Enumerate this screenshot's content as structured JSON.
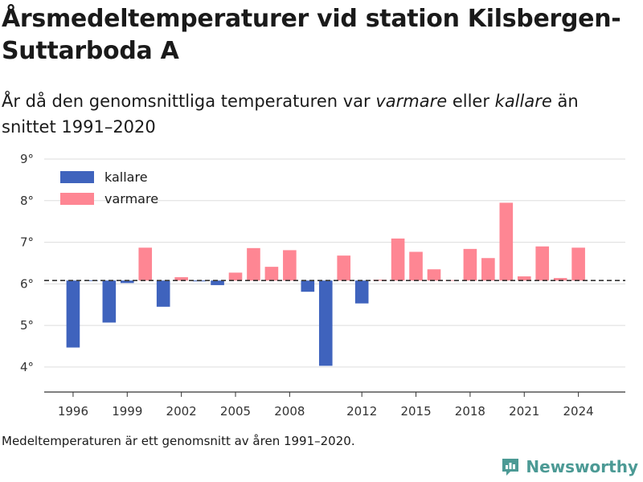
{
  "title": "Årsmedeltemperaturer vid station Kilsbergen-Suttarboda A",
  "subtitle": {
    "part1": "År då den genomsnittliga temperaturen var ",
    "warm_word": "varmare",
    "part2": " eller ",
    "cold_word": "kallare",
    "part3": " än snittet 1991–2020"
  },
  "footnote": "Medeltemperaturen är ett genomsnitt av åren 1991–2020.",
  "brand": {
    "name": "Newsworthy",
    "logo_icon": "newsworthy-logo-icon"
  },
  "colors": {
    "kallare": "#3f63bd",
    "varmare": "#fe8693",
    "baseline": "#333333",
    "grid": "#dddddd"
  },
  "chart_data": {
    "type": "bar",
    "baseline": 6.08,
    "xlim": [
      1994.4,
      2026.6
    ],
    "ylim": [
      3.4,
      9.0
    ],
    "x_ticks": [
      1996,
      1999,
      2002,
      2005,
      2008,
      2012,
      2015,
      2018,
      2021,
      2024
    ],
    "y_ticks": [
      4,
      5,
      6,
      7,
      8,
      9
    ],
    "y_tick_labels": [
      "4°",
      "5°",
      "6°",
      "7°",
      "8°",
      "9°"
    ],
    "legend": [
      {
        "key": "kallare",
        "label": "kallare"
      },
      {
        "key": "varmare",
        "label": "varmare"
      }
    ],
    "legend_position": "top-left",
    "grid": true,
    "years": [
      1996,
      1997,
      1998,
      1999,
      2000,
      2001,
      2002,
      2003,
      2004,
      2005,
      2006,
      2007,
      2008,
      2009,
      2010,
      2011,
      2012,
      2013,
      2014,
      2015,
      2016,
      2017,
      2018,
      2019,
      2020,
      2021,
      2022,
      2023,
      2024
    ],
    "values": [
      4.47,
      6.07,
      5.07,
      6.02,
      6.87,
      5.45,
      6.16,
      6.06,
      5.97,
      6.27,
      6.86,
      6.41,
      6.81,
      5.81,
      4.03,
      6.68,
      5.53,
      6.1,
      7.09,
      6.77,
      6.35,
      6.09,
      6.84,
      6.62,
      7.95,
      6.18,
      6.9,
      6.14,
      6.87
    ]
  }
}
